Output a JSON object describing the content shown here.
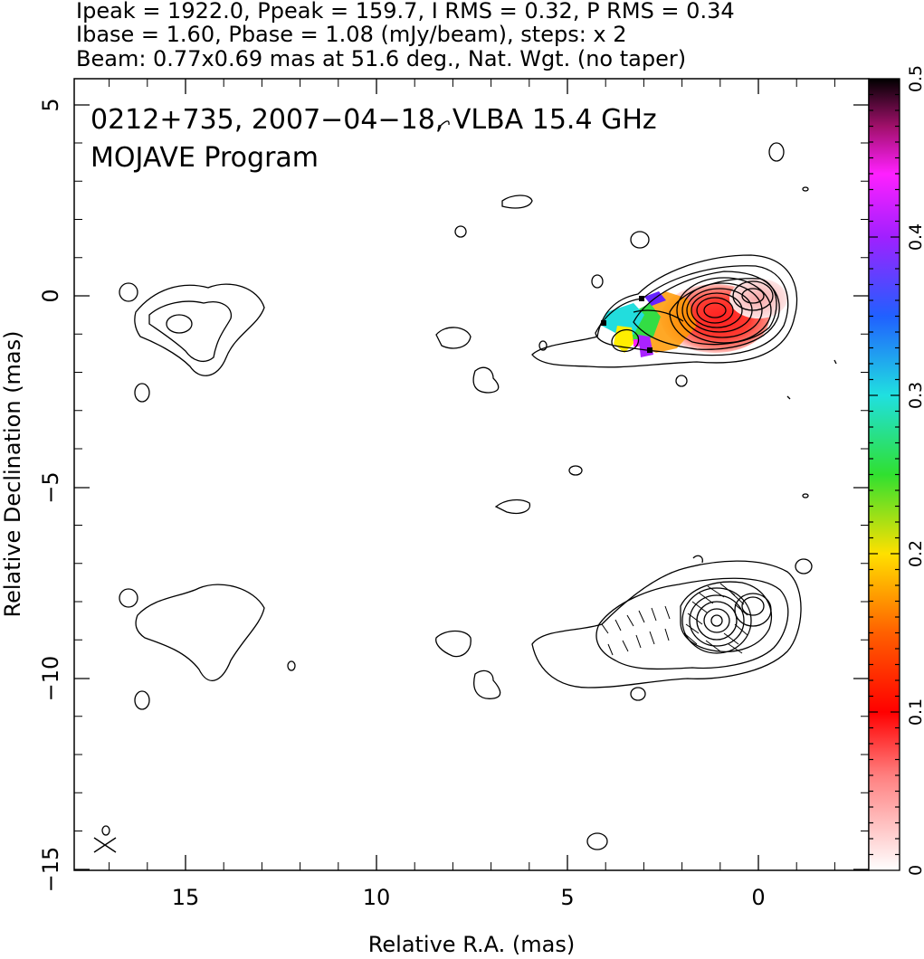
{
  "header": {
    "line1": "Ipeak = 1922.0, Ppeak = 159.7, I RMS = 0.32, P RMS = 0.34",
    "line2": "Ibase = 1.60, Pbase = 1.08 (mJy/beam), steps: x 2",
    "line3": "Beam: 0.77x0.69 mas at 51.6 deg., Nat. Wgt. (no taper)"
  },
  "plot": {
    "label_line1": "0212+735, 2007−04−18, VLBA 15.4 GHz",
    "label_line2": "MOJAVE Program",
    "xlabel": "Relative R.A. (mas)",
    "ylabel": "Relative Declination (mas)",
    "x_ticks": [
      "15",
      "10",
      "5",
      "0"
    ],
    "y_ticks": [
      "5",
      "0",
      "−5",
      "−10",
      "−15"
    ]
  },
  "colorbar": {
    "ticks": [
      "0",
      "0.1",
      "0.2",
      "0.3",
      "0.4",
      "0.5"
    ],
    "range": [
      0,
      0.5
    ]
  }
}
